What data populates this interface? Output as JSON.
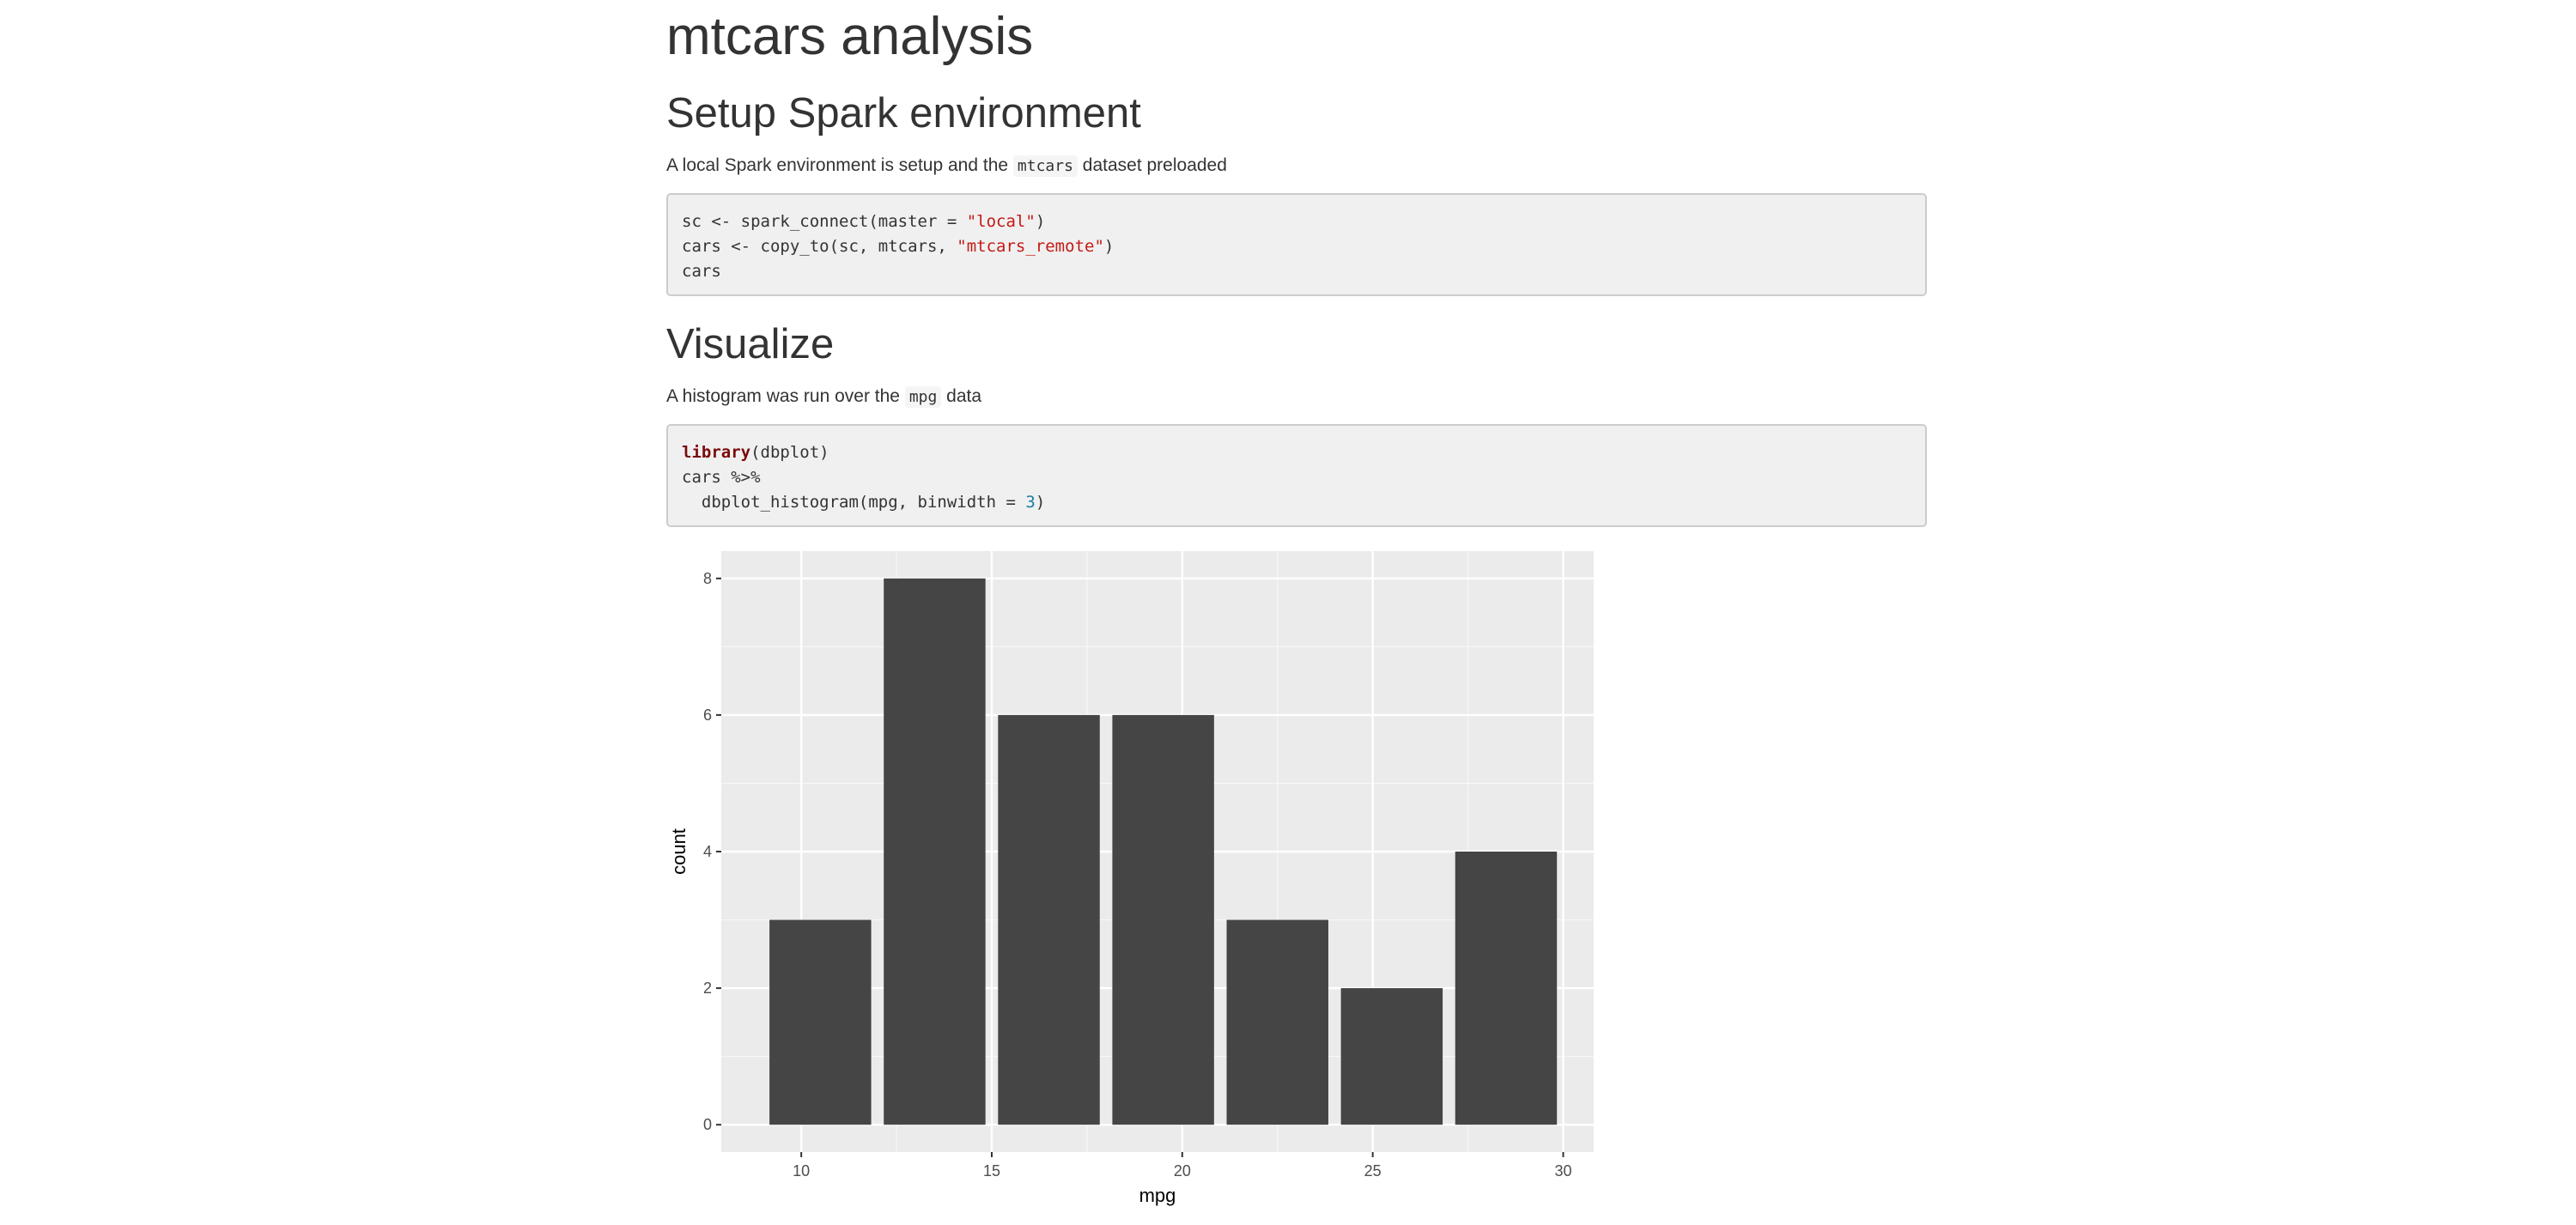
{
  "page": {
    "title": "mtcars analysis"
  },
  "setup": {
    "heading": "Setup Spark environment",
    "text_before": "A local Spark environment is setup and the ",
    "inline_code": "mtcars",
    "text_after": " dataset preloaded",
    "code": {
      "line1_pre": "sc <- spark_connect(master = ",
      "line1_str": "\"local\"",
      "line1_post": ")",
      "line2_pre": "cars <- copy_to(sc, mtcars, ",
      "line2_str": "\"mtcars_remote\"",
      "line2_post": ")",
      "line3": "cars"
    }
  },
  "visualize": {
    "heading": "Visualize",
    "text_before": "A histogram was run over the ",
    "inline_code": "mpg",
    "text_after": " data",
    "code": {
      "line1_kw": "library",
      "line1_post": "(dbplot)",
      "line2": "cars %>%",
      "line3_pre": "  dbplot_histogram(mpg, binwidth = ",
      "line3_num": "3",
      "line3_post": ")"
    }
  },
  "chart_data": {
    "type": "bar",
    "title": "",
    "xlabel": "mpg",
    "ylabel": "count",
    "binwidth": 3,
    "bins": [
      {
        "x_start": 9.0,
        "x_end": 12.0,
        "count": 3
      },
      {
        "x_start": 12.0,
        "x_end": 15.0,
        "count": 8
      },
      {
        "x_start": 15.0,
        "x_end": 18.0,
        "count": 6
      },
      {
        "x_start": 18.0,
        "x_end": 21.0,
        "count": 6
      },
      {
        "x_start": 21.0,
        "x_end": 24.0,
        "count": 3
      },
      {
        "x_start": 24.0,
        "x_end": 27.0,
        "count": 2
      },
      {
        "x_start": 27.0,
        "x_end": 30.0,
        "count": 4
      }
    ],
    "xlim": [
      7.9,
      30.8
    ],
    "ylim": [
      -0.4,
      8.4
    ],
    "x_ticks": [
      10,
      15,
      20,
      25,
      30
    ],
    "x_tick_labels": [
      "10",
      "15",
      "20",
      "25",
      "30"
    ],
    "y_ticks": [
      0,
      2,
      4,
      6,
      8
    ],
    "y_tick_labels": [
      "0",
      "2",
      "4",
      "6",
      "8"
    ],
    "grid": true,
    "legend": "none",
    "colors": {
      "bar": "#454545",
      "panel": "#ebebeb",
      "grid": "#ffffff"
    }
  }
}
